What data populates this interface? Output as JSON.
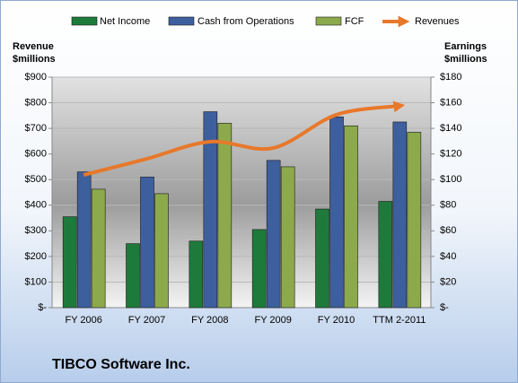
{
  "chart_data": {
    "type": "bar-line",
    "title": "TIBCO Software Inc.",
    "ylabel": [
      "Revenue",
      "$millions"
    ],
    "y2label": [
      "Earnings",
      "$millions"
    ],
    "categories": [
      "FY 2006",
      "FY 2007",
      "FY 2008",
      "FY 2009",
      "FY 2010",
      "TTM 2-2011"
    ],
    "series": [
      {
        "name": "Net Income",
        "color": "#1e7a3a",
        "axis": "y2",
        "values": [
          71,
          50,
          52,
          61,
          77,
          83
        ]
      },
      {
        "name": "Cash from Operations",
        "color": "#3d5f9e",
        "axis": "y2",
        "values": [
          106,
          102,
          153,
          115,
          149,
          145
        ]
      },
      {
        "name": "FCF",
        "color": "#8caa4c",
        "axis": "y2",
        "values": [
          92.5,
          89,
          144,
          110,
          142,
          137
        ]
      },
      {
        "name": "Revenues",
        "color": "#e8782a",
        "axis": "y",
        "type": "line",
        "values": [
          518,
          581,
          648,
          623,
          753,
          788
        ]
      }
    ],
    "ylim": [
      0,
      900
    ],
    "yticks": [
      {
        "value": 0,
        "label": "$-"
      },
      {
        "value": 100,
        "label": "$100"
      },
      {
        "value": 200,
        "label": "$200"
      },
      {
        "value": 300,
        "label": "$300"
      },
      {
        "value": 400,
        "label": "$400"
      },
      {
        "value": 500,
        "label": "$500"
      },
      {
        "value": 600,
        "label": "$600"
      },
      {
        "value": 700,
        "label": "$700"
      },
      {
        "value": 800,
        "label": "$800"
      },
      {
        "value": 900,
        "label": "$900"
      }
    ],
    "y2lim": [
      0,
      180
    ],
    "y2ticks": [
      {
        "value": 0,
        "label": "$-"
      },
      {
        "value": 20,
        "label": "$20"
      },
      {
        "value": 40,
        "label": "$40"
      },
      {
        "value": 60,
        "label": "$60"
      },
      {
        "value": 80,
        "label": "$80"
      },
      {
        "value": 100,
        "label": "$100"
      },
      {
        "value": 120,
        "label": "$120"
      },
      {
        "value": 140,
        "label": "$140"
      },
      {
        "value": 160,
        "label": "$160"
      },
      {
        "value": 180,
        "label": "$180"
      }
    ],
    "grid": true,
    "legend": "top"
  }
}
